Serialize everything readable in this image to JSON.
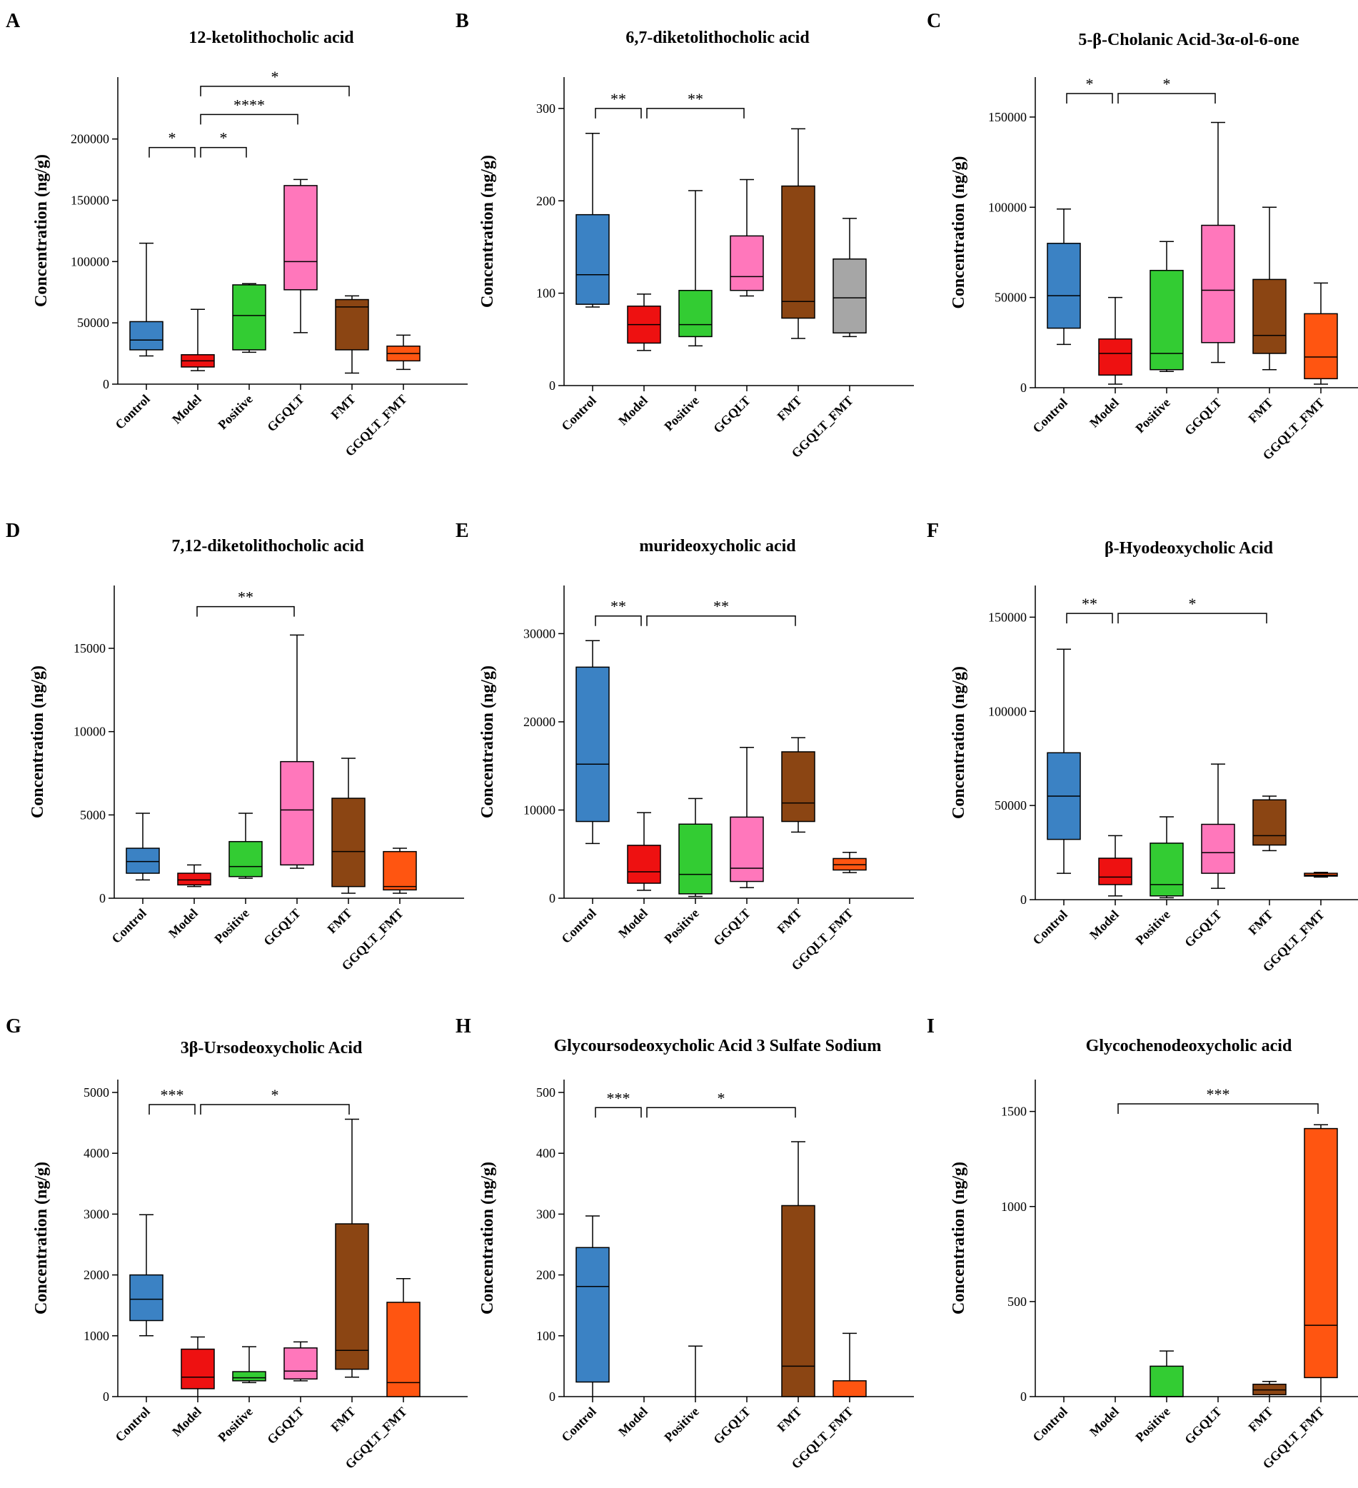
{
  "figure": {
    "y_axis_label": "Concentration (ng/g)",
    "groups": [
      "Control",
      "Model",
      "Positive",
      "GGQLT",
      "FMT",
      "GGQLT_FMT"
    ],
    "group_colors": {
      "Control": "#3b82c4",
      "Model": "#ee1111",
      "Positive": "#33cc33",
      "GGQLT": "#ff77bb",
      "FMT": "#8b4513",
      "GGQLT_FMT": "#ff5511",
      "Gray": "#a6a6a6"
    }
  },
  "chart_data": [
    {
      "letter": "A",
      "type": "box",
      "title": "12-ketolithocholic acid",
      "ylim": [
        0,
        240000
      ],
      "ticks": [
        0,
        50000,
        100000,
        150000,
        200000
      ],
      "tick_labels": [
        "0",
        "50000",
        "100000",
        "150000",
        "200000"
      ],
      "boxes": [
        {
          "group": "Control",
          "min": 23000,
          "q1": 28000,
          "median": 36000,
          "q3": 51000,
          "max": 115000
        },
        {
          "group": "Model",
          "min": 11000,
          "q1": 14000,
          "median": 19000,
          "q3": 24000,
          "max": 61000
        },
        {
          "group": "Positive",
          "min": 26000,
          "q1": 28000,
          "median": 56000,
          "q3": 81000,
          "max": 82000
        },
        {
          "group": "GGQLT",
          "min": 42000,
          "q1": 77000,
          "median": 100000,
          "q3": 162000,
          "max": 167000
        },
        {
          "group": "FMT",
          "min": 9000,
          "q1": 28000,
          "median": 63000,
          "q3": 69000,
          "max": 72000
        },
        {
          "group": "GGQLT_FMT",
          "min": 12000,
          "q1": 19000,
          "median": 25000,
          "q3": 31000,
          "max": 40000
        }
      ],
      "significance": [
        {
          "from": 0,
          "to": 1,
          "label": "*",
          "y": 193000
        },
        {
          "from": 1,
          "to": 2,
          "label": "*",
          "y": 193000
        },
        {
          "from": 1,
          "to": 3,
          "label": "****",
          "y": 220000
        },
        {
          "from": 1,
          "to": 4,
          "label": "*",
          "y": 243000
        }
      ]
    },
    {
      "letter": "B",
      "type": "box",
      "title": "6,7-diketolithocholic acid",
      "ylim": [
        0,
        320
      ],
      "ticks": [
        0,
        100,
        200,
        300
      ],
      "tick_labels": [
        "0",
        "100",
        "200",
        "300"
      ],
      "boxes": [
        {
          "group": "Control",
          "min": 85,
          "q1": 88,
          "median": 120,
          "q3": 185,
          "max": 273
        },
        {
          "group": "Model",
          "min": 38,
          "q1": 46,
          "median": 66,
          "q3": 86,
          "max": 99
        },
        {
          "group": "Positive",
          "min": 43,
          "q1": 53,
          "median": 66,
          "q3": 103,
          "max": 211
        },
        {
          "group": "GGQLT",
          "min": 97,
          "q1": 103,
          "median": 118,
          "q3": 162,
          "max": 223
        },
        {
          "group": "FMT",
          "min": 51,
          "q1": 73,
          "median": 91,
          "q3": 216,
          "max": 278
        },
        {
          "group": "GGQLT_FMT",
          "color": "Gray",
          "min": 53,
          "q1": 57,
          "median": 95,
          "q3": 137,
          "max": 181
        }
      ],
      "significance": [
        {
          "from": 0,
          "to": 1,
          "label": "**",
          "y": 300
        },
        {
          "from": 1,
          "to": 3,
          "label": "**",
          "y": 300
        }
      ]
    },
    {
      "letter": "C",
      "type": "box",
      "title": "5-β-Cholanic Acid-3α-ol-6-one",
      "ylim": [
        0,
        165000
      ],
      "ticks": [
        0,
        50000,
        100000,
        150000
      ],
      "tick_labels": [
        "0",
        "50000",
        "100000",
        "150000"
      ],
      "boxes": [
        {
          "group": "Control",
          "min": 24000,
          "q1": 33000,
          "median": 51000,
          "q3": 80000,
          "max": 99000
        },
        {
          "group": "Model",
          "min": 2000,
          "q1": 7000,
          "median": 19000,
          "q3": 27000,
          "max": 50000
        },
        {
          "group": "Positive",
          "min": 9000,
          "q1": 10000,
          "median": 19000,
          "q3": 65000,
          "max": 81000
        },
        {
          "group": "GGQLT",
          "min": 14000,
          "q1": 25000,
          "median": 54000,
          "q3": 90000,
          "max": 147000
        },
        {
          "group": "FMT",
          "min": 10000,
          "q1": 19000,
          "median": 29000,
          "q3": 60000,
          "max": 100000
        },
        {
          "group": "GGQLT_FMT",
          "min": 2000,
          "q1": 5000,
          "median": 17000,
          "q3": 41000,
          "max": 58000
        }
      ],
      "significance": [
        {
          "from": 0,
          "to": 1,
          "label": "*",
          "y": 163000
        },
        {
          "from": 1,
          "to": 3,
          "label": "*",
          "y": 163000
        }
      ]
    },
    {
      "letter": "D",
      "type": "box",
      "title": "7,12-diketolithocholic acid",
      "ylim": [
        0,
        18000
      ],
      "ticks": [
        0,
        5000,
        10000,
        15000
      ],
      "tick_labels": [
        "0",
        "5000",
        "10000",
        "15000"
      ],
      "boxes": [
        {
          "group": "Control",
          "min": 1100,
          "q1": 1500,
          "median": 2200,
          "q3": 3000,
          "max": 5100
        },
        {
          "group": "Model",
          "min": 700,
          "q1": 800,
          "median": 1100,
          "q3": 1500,
          "max": 2000
        },
        {
          "group": "Positive",
          "min": 1200,
          "q1": 1300,
          "median": 1900,
          "q3": 3400,
          "max": 5100
        },
        {
          "group": "GGQLT",
          "min": 1800,
          "q1": 2000,
          "median": 5300,
          "q3": 8200,
          "max": 15800
        },
        {
          "group": "FMT",
          "min": 300,
          "q1": 700,
          "median": 2800,
          "q3": 6000,
          "max": 8400
        },
        {
          "group": "GGQLT_FMT",
          "min": 300,
          "q1": 500,
          "median": 700,
          "q3": 2800,
          "max": 3000
        }
      ],
      "significance": [
        {
          "from": 1,
          "to": 3,
          "label": "**",
          "y": 17500
        }
      ]
    },
    {
      "letter": "E",
      "type": "box",
      "title": "murideoxycholic acid",
      "ylim": [
        0,
        34000
      ],
      "ticks": [
        0,
        10000,
        20000,
        30000
      ],
      "tick_labels": [
        "0",
        "10000",
        "20000",
        "30000"
      ],
      "boxes": [
        {
          "group": "Control",
          "min": 6200,
          "q1": 8700,
          "median": 15200,
          "q3": 26200,
          "max": 29200
        },
        {
          "group": "Model",
          "min": 900,
          "q1": 1700,
          "median": 3000,
          "q3": 6000,
          "max": 9700
        },
        {
          "group": "Positive",
          "min": 200,
          "q1": 500,
          "median": 2700,
          "q3": 8400,
          "max": 11300
        },
        {
          "group": "GGQLT",
          "min": 1200,
          "q1": 1900,
          "median": 3400,
          "q3": 9200,
          "max": 17100
        },
        {
          "group": "FMT",
          "min": 7500,
          "q1": 8700,
          "median": 10800,
          "q3": 16600,
          "max": 18200
        },
        {
          "group": "GGQLT_FMT",
          "min": 2900,
          "q1": 3200,
          "median": 3800,
          "q3": 4500,
          "max": 5200
        }
      ],
      "significance": [
        {
          "from": 0,
          "to": 1,
          "label": "**",
          "y": 32000
        },
        {
          "from": 1,
          "to": 4,
          "label": "**",
          "y": 32000
        }
      ]
    },
    {
      "letter": "F",
      "type": "box",
      "title": "β-Hyodeoxycholic Acid",
      "ylim": [
        0,
        160000
      ],
      "ticks": [
        0,
        50000,
        100000,
        150000
      ],
      "tick_labels": [
        "0",
        "50000",
        "100000",
        "150000"
      ],
      "boxes": [
        {
          "group": "Control",
          "min": 14000,
          "q1": 32000,
          "median": 55000,
          "q3": 78000,
          "max": 133000
        },
        {
          "group": "Model",
          "min": 2000,
          "q1": 8000,
          "median": 12000,
          "q3": 22000,
          "max": 34000
        },
        {
          "group": "Positive",
          "min": 1000,
          "q1": 2000,
          "median": 8000,
          "q3": 30000,
          "max": 44000
        },
        {
          "group": "GGQLT",
          "min": 6000,
          "q1": 14000,
          "median": 25000,
          "q3": 40000,
          "max": 72000
        },
        {
          "group": "FMT",
          "min": 26000,
          "q1": 29000,
          "median": 34000,
          "q3": 53000,
          "max": 55000
        },
        {
          "group": "GGQLT_FMT",
          "min": 12000,
          "q1": 12500,
          "median": 13000,
          "q3": 14000,
          "max": 14500
        }
      ],
      "significance": [
        {
          "from": 0,
          "to": 1,
          "label": "**",
          "y": 152000
        },
        {
          "from": 1,
          "to": 4,
          "label": "*",
          "y": 152000
        }
      ]
    },
    {
      "letter": "G",
      "type": "box",
      "title": "3β-Ursodeoxycholic Acid",
      "ylim": [
        0,
        5000
      ],
      "ticks": [
        0,
        1000,
        2000,
        3000,
        4000,
        5000
      ],
      "tick_labels": [
        "0",
        "1000",
        "2000",
        "3000",
        "4000",
        "5000"
      ],
      "boxes": [
        {
          "group": "Control",
          "min": 1000,
          "q1": 1250,
          "median": 1600,
          "q3": 2000,
          "max": 2990
        },
        {
          "group": "Model",
          "min": 0,
          "q1": 130,
          "median": 320,
          "q3": 780,
          "max": 980
        },
        {
          "group": "Positive",
          "min": 230,
          "q1": 260,
          "median": 310,
          "q3": 410,
          "max": 820
        },
        {
          "group": "GGQLT",
          "min": 260,
          "q1": 290,
          "median": 420,
          "q3": 800,
          "max": 900
        },
        {
          "group": "FMT",
          "min": 320,
          "q1": 450,
          "median": 760,
          "q3": 2840,
          "max": 4560
        },
        {
          "group": "GGQLT_FMT",
          "min": 0,
          "q1": 0,
          "median": 230,
          "q3": 1550,
          "max": 1940
        }
      ],
      "significance": [
        {
          "from": 0,
          "to": 1,
          "label": "***",
          "y": 4800
        },
        {
          "from": 1,
          "to": 4,
          "label": "*",
          "y": 4800
        }
      ]
    },
    {
      "letter": "H",
      "type": "box",
      "title": "Glycoursodeoxycholic Acid 3 Sulfate Sodium",
      "ylim": [
        0,
        500
      ],
      "ticks": [
        0,
        100,
        200,
        300,
        400,
        500
      ],
      "tick_labels": [
        "0",
        "100",
        "200",
        "300",
        "400",
        "500"
      ],
      "boxes": [
        {
          "group": "Control",
          "min": 0,
          "q1": 24,
          "median": 181,
          "q3": 245,
          "max": 297
        },
        {
          "group": "Model",
          "min": 0,
          "q1": 0,
          "median": 0,
          "q3": 0,
          "max": 0
        },
        {
          "group": "Positive",
          "min": 0,
          "q1": 0,
          "median": 0,
          "q3": 0,
          "max": 83
        },
        {
          "group": "GGQLT",
          "min": 0,
          "q1": 0,
          "median": 0,
          "q3": 0,
          "max": 0
        },
        {
          "group": "FMT",
          "min": 0,
          "q1": 0,
          "median": 50,
          "q3": 314,
          "max": 419
        },
        {
          "group": "GGQLT_FMT",
          "min": 0,
          "q1": 0,
          "median": 0,
          "q3": 26,
          "max": 104
        }
      ],
      "significance": [
        {
          "from": 0,
          "to": 1,
          "label": "***",
          "y": 475
        },
        {
          "from": 1,
          "to": 4,
          "label": "*",
          "y": 475
        }
      ]
    },
    {
      "letter": "I",
      "type": "box",
      "title": "Glycochenodeoxycholic acid",
      "ylim": [
        0,
        1600
      ],
      "ticks": [
        0,
        500,
        1000,
        1500
      ],
      "tick_labels": [
        "0",
        "500",
        "1000",
        "1500"
      ],
      "boxes": [
        {
          "group": "Control",
          "min": 0,
          "q1": 0,
          "median": 0,
          "q3": 0,
          "max": 0
        },
        {
          "group": "Model",
          "min": 0,
          "q1": 0,
          "median": 0,
          "q3": 0,
          "max": 0
        },
        {
          "group": "Positive",
          "min": 0,
          "q1": 0,
          "median": 0,
          "q3": 160,
          "max": 240
        },
        {
          "group": "GGQLT",
          "min": 0,
          "q1": 0,
          "median": 0,
          "q3": 0,
          "max": 0
        },
        {
          "group": "FMT",
          "min": 0,
          "q1": 10,
          "median": 35,
          "q3": 65,
          "max": 80
        },
        {
          "group": "GGQLT_FMT",
          "min": 0,
          "q1": 100,
          "median": 375,
          "q3": 1410,
          "max": 1430
        }
      ],
      "significance": [
        {
          "from": 1,
          "to": 5,
          "label": "***",
          "y": 1540
        }
      ]
    }
  ]
}
